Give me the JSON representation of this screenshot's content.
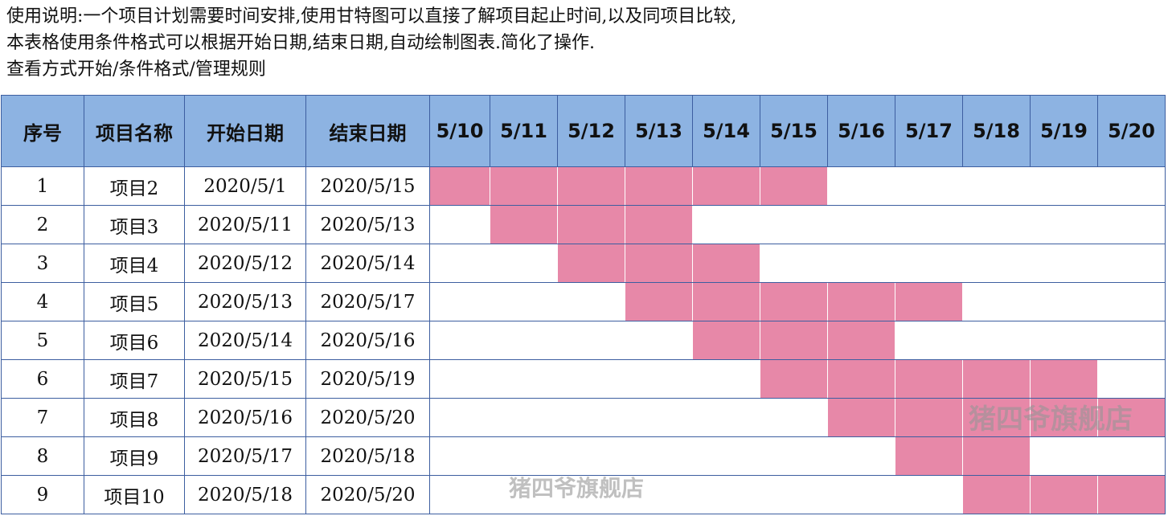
{
  "notes": [
    "使用说明:一个项目计划需要时间安排,使用甘特图可以直接了解项目起止时间,以及同项目比较,",
    "本表格使用条件格式可以根据开始日期,结束日期,自动绘制图表.简化了操作.",
    "查看方式开始/条件格式/管理规则"
  ],
  "header": {
    "seq": "序号",
    "name": "项目名称",
    "start": "开始日期",
    "end": "结束日期",
    "days": [
      "5/10",
      "5/11",
      "5/12",
      "5/13",
      "5/14",
      "5/15",
      "5/16",
      "5/17",
      "5/18",
      "5/19",
      "5/20"
    ]
  },
  "rows": [
    {
      "seq": "1",
      "name": "项目2",
      "start": "2020/5/1",
      "end": "2020/5/15"
    },
    {
      "seq": "2",
      "name": "项目3",
      "start": "2020/5/11",
      "end": "2020/5/13"
    },
    {
      "seq": "3",
      "name": "项目4",
      "start": "2020/5/12",
      "end": "2020/5/14"
    },
    {
      "seq": "4",
      "name": "项目5",
      "start": "2020/5/13",
      "end": "2020/5/17"
    },
    {
      "seq": "5",
      "name": "项目6",
      "start": "2020/5/14",
      "end": "2020/5/16"
    },
    {
      "seq": "6",
      "name": "项目7",
      "start": "2020/5/15",
      "end": "2020/5/19"
    },
    {
      "seq": "7",
      "name": "项目8",
      "start": "2020/5/16",
      "end": "2020/5/20"
    },
    {
      "seq": "8",
      "name": "项目9",
      "start": "2020/5/17",
      "end": "2020/5/18"
    },
    {
      "seq": "9",
      "name": "项目10",
      "start": "2020/5/18",
      "end": "2020/5/20"
    }
  ],
  "colors": {
    "header_bg": "#8db3e2",
    "bar": "#e788a8",
    "grid": "#3d5ea0"
  },
  "watermark": "猪四爷旗舰店"
}
